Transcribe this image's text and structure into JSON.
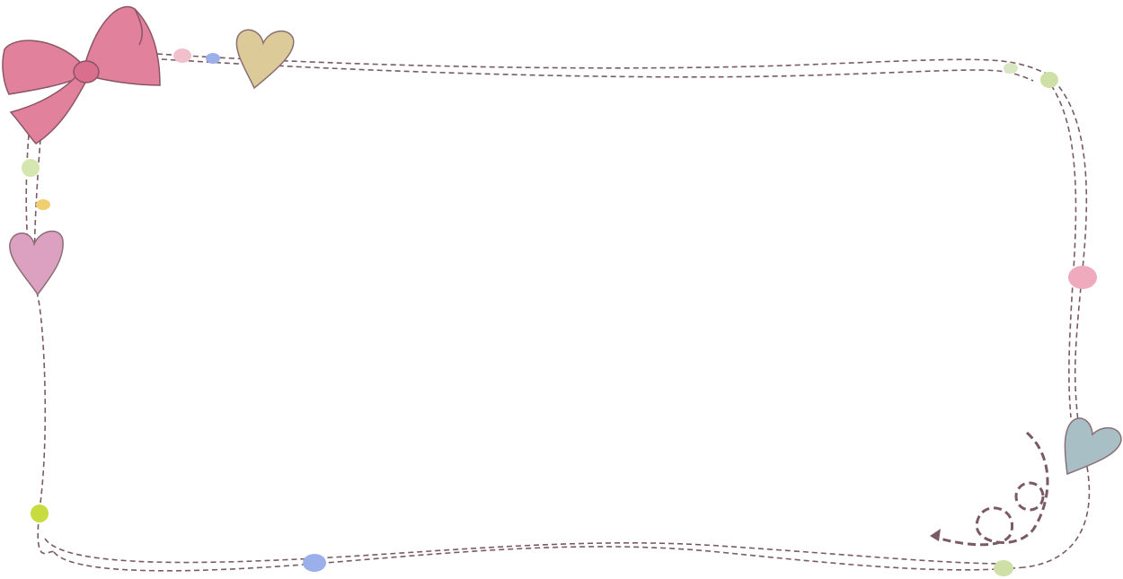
{
  "frame": {
    "style": "dashed hand-drawn border",
    "colors": {
      "dash": "#7a5a63",
      "bow": "#e2819b",
      "bow_dark": "#c9607d",
      "heart_top": "#dccb99",
      "heart_left": "#dca0c0",
      "heart_right": "#a9bfc6",
      "dot_pink": "#f0aabd",
      "dot_blue": "#9bb0ea",
      "dot_green": "#cfe0a6",
      "dot_yellow": "#f1cf6e",
      "dot_lime": "#c6dc3f"
    },
    "icons": [
      "bow-icon",
      "heart-icon",
      "heart-icon",
      "heart-icon",
      "swirl-arrow-icon"
    ]
  }
}
